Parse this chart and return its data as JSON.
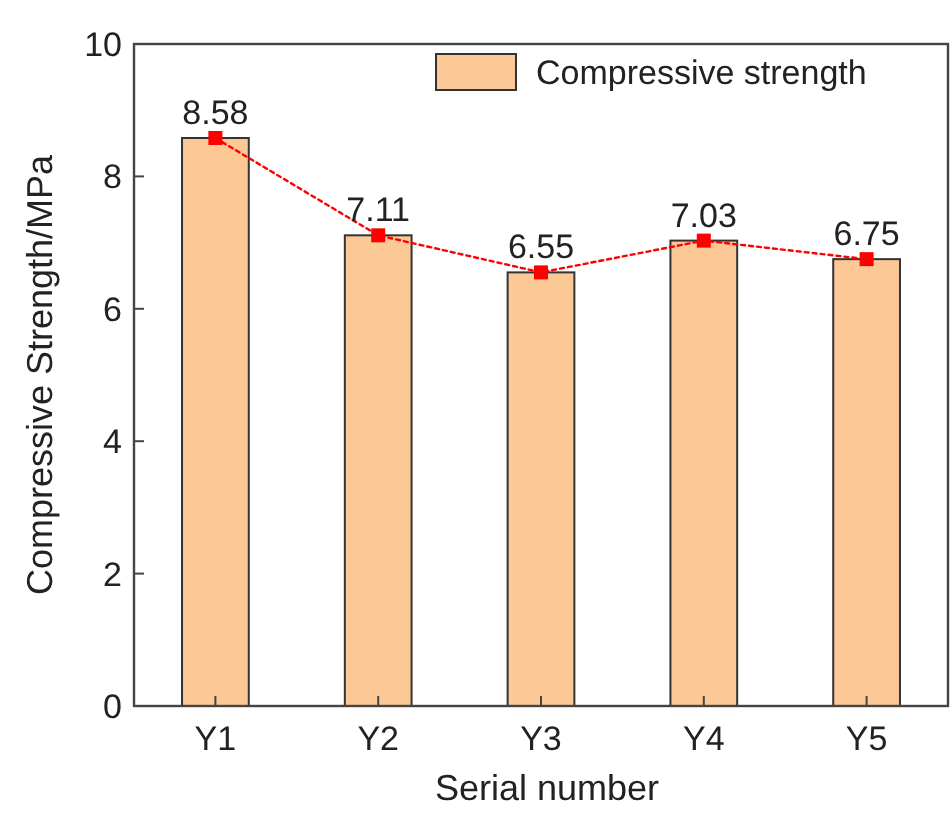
{
  "chart_data": {
    "type": "bar",
    "xlabel": "Serial number",
    "ylabel": "Compressive Strength/MPa",
    "categories": [
      "Y1",
      "Y2",
      "Y3",
      "Y4",
      "Y5"
    ],
    "series": [
      {
        "name": "Compressive strength",
        "color": "#fcc896",
        "values": [
          8.58,
          7.11,
          6.55,
          7.03,
          6.75
        ]
      },
      {
        "type": "line",
        "color": "#ff0000",
        "values": [
          8.58,
          7.11,
          6.55,
          7.03,
          6.75
        ],
        "value_labels": [
          "8.58",
          "7.11",
          "6.55",
          "7.03",
          "6.75"
        ],
        "marker": "square",
        "line_style": "dotted"
      }
    ],
    "ylim": [
      0,
      10
    ],
    "yticks": [
      0,
      2,
      4,
      6,
      8,
      10
    ],
    "legend": "top right",
    "grid": false
  }
}
